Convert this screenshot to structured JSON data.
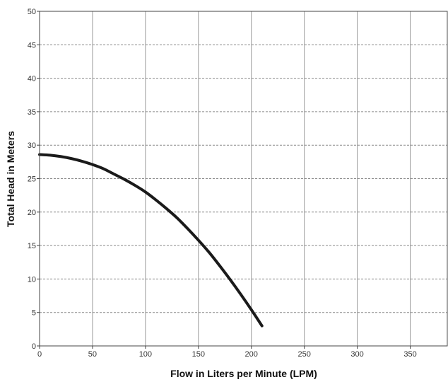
{
  "chart_data": {
    "type": "line",
    "title": "",
    "xlabel": "Flow in Liters per Minute (LPM)",
    "ylabel": "Total Head in Meters",
    "xlim": [
      0,
      385
    ],
    "ylim": [
      0,
      50
    ],
    "xticks": [
      0,
      50,
      100,
      150,
      200,
      250,
      300,
      350
    ],
    "yticks": [
      0,
      5,
      10,
      15,
      20,
      25,
      30,
      35,
      40,
      45,
      50
    ],
    "grid": {
      "vertical": "solid",
      "horizontal": "dashed"
    },
    "legend": "none",
    "series": [
      {
        "color": "#1a1a1a",
        "x": [
          0,
          10,
          20,
          30,
          40,
          50,
          60,
          70,
          80,
          90,
          100,
          110,
          120,
          130,
          140,
          150,
          160,
          170,
          180,
          190,
          200,
          210
        ],
        "y": [
          28.6,
          28.5,
          28.3,
          28.0,
          27.6,
          27.1,
          26.5,
          25.7,
          24.9,
          24.0,
          23.0,
          21.8,
          20.5,
          19.1,
          17.5,
          15.8,
          14.0,
          12.0,
          9.9,
          7.7,
          5.4,
          3.0
        ]
      }
    ]
  }
}
